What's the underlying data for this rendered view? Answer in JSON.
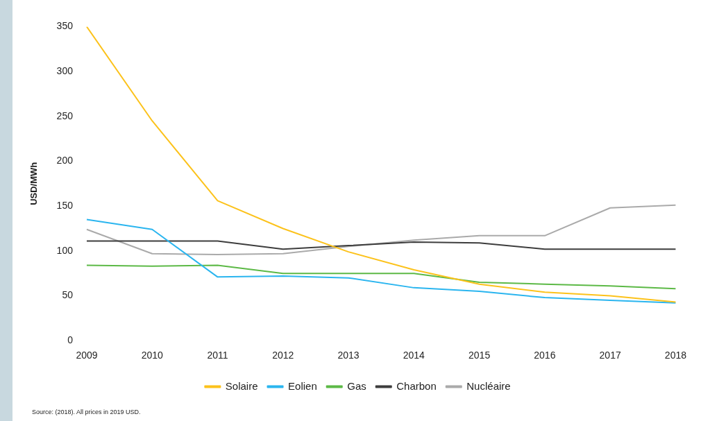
{
  "chart_data": {
    "type": "line",
    "ylabel": "USD/MWh",
    "categories": [
      "2009",
      "2010",
      "2011",
      "2012",
      "2013",
      "2014",
      "2015",
      "2016",
      "2017",
      "2018"
    ],
    "series": [
      {
        "name": "Solaire",
        "color": "#fcc21b",
        "values": [
          350,
          245,
          156,
          125,
          99,
          79,
          63,
          54,
          50,
          43
        ]
      },
      {
        "name": "Eolien",
        "color": "#2ab5ef",
        "values": [
          135,
          124,
          71,
          72,
          70,
          59,
          55,
          48,
          45,
          42
        ]
      },
      {
        "name": "Gas",
        "color": "#5cb946",
        "values": [
          84,
          83,
          84,
          75,
          75,
          75,
          65,
          63,
          61,
          58
        ]
      },
      {
        "name": "Charbon",
        "color": "#3d3d3d",
        "values": [
          111,
          111,
          111,
          102,
          106,
          110,
          109,
          102,
          102,
          102
        ]
      },
      {
        "name": "Nucléaire",
        "color": "#aaaaaa",
        "values": [
          124,
          97,
          96,
          97,
          105,
          112,
          117,
          117,
          148,
          151
        ]
      }
    ],
    "ylim": [
      0,
      350
    ],
    "yticks": [
      0,
      50,
      100,
      150,
      200,
      250,
      300,
      350
    ],
    "grid": false,
    "legend": "bottom",
    "marker": "none",
    "line_style": "solid",
    "annotations": [
      "Source: (2018). All prices in 2019 USD."
    ]
  }
}
